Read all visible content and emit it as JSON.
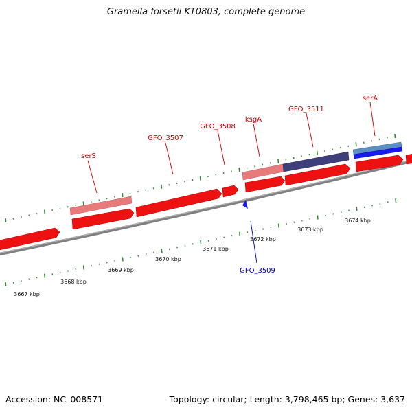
{
  "title": "Gramella forsetii KT0803, complete genome",
  "footer": {
    "accession": "Accession: NC_008571",
    "summary": "Topology: circular; Length: 3,798,465 bp; Genes: 3,637"
  },
  "colors": {
    "forward_gene": "#ee1111",
    "forward_gene_light": "#e77b7b",
    "gene_label_red": "#cc0000",
    "gene_label_blue": "#0000aa",
    "tick_green": "#2e8b2e",
    "backbone": "#888888",
    "operon_purple": "#3e3e7a",
    "operon_blue_light": "#5b8fc0",
    "reverse_gene_blue": "#1a1aee"
  },
  "kbp_ticks": [
    "3667 kbp",
    "3668 kbp",
    "3669 kbp",
    "3670 kbp",
    "3671 kbp",
    "3672 kbp",
    "3673 kbp",
    "3674 kbp"
  ],
  "gene_labels": [
    {
      "name": "serS",
      "strand": "forward"
    },
    {
      "name": "GFO_3507",
      "strand": "forward"
    },
    {
      "name": "GFO_3508",
      "strand": "forward"
    },
    {
      "name": "ksgA",
      "strand": "forward"
    },
    {
      "name": "GFO_3511",
      "strand": "forward"
    },
    {
      "name": "serA",
      "strand": "forward"
    },
    {
      "name": "GFO_3509",
      "strand": "reverse"
    }
  ]
}
